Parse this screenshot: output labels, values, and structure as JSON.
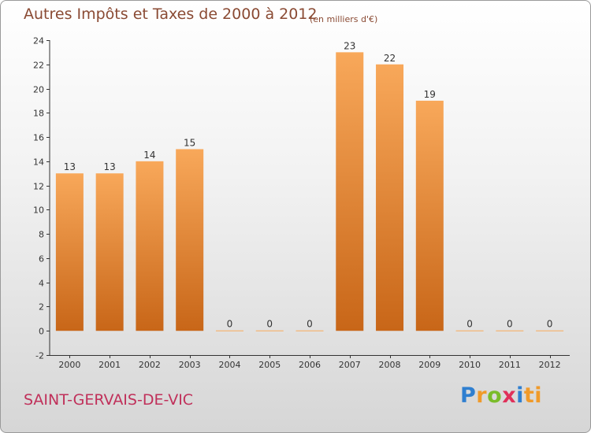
{
  "header": {
    "title": "Autres Impôts et Taxes de 2000 à 2012",
    "unit": "(en milliers d'€)"
  },
  "footer": {
    "commune": "SAINT-GERVAIS-DE-VIC",
    "logo": "Proxiti"
  },
  "colors": {
    "bar_top": "#f8a85a",
    "bar_bottom": "#c86618",
    "title": "#8a4a33",
    "commune": "#c0305a"
  },
  "chart_data": {
    "type": "bar",
    "title": "Autres Impôts et Taxes de 2000 à 2012",
    "subtitle": "(en milliers d'€)",
    "categories": [
      "2000",
      "2001",
      "2002",
      "2003",
      "2004",
      "2005",
      "2006",
      "2007",
      "2008",
      "2009",
      "2010",
      "2011",
      "2012"
    ],
    "values": [
      13,
      13,
      14,
      15,
      0,
      0,
      0,
      23,
      22,
      19,
      0,
      0,
      0
    ],
    "ylim": [
      -2,
      24
    ],
    "yticks": [
      -2,
      0,
      2,
      4,
      6,
      8,
      10,
      12,
      14,
      16,
      18,
      20,
      22,
      24
    ],
    "grid": false,
    "data_labels": true
  }
}
